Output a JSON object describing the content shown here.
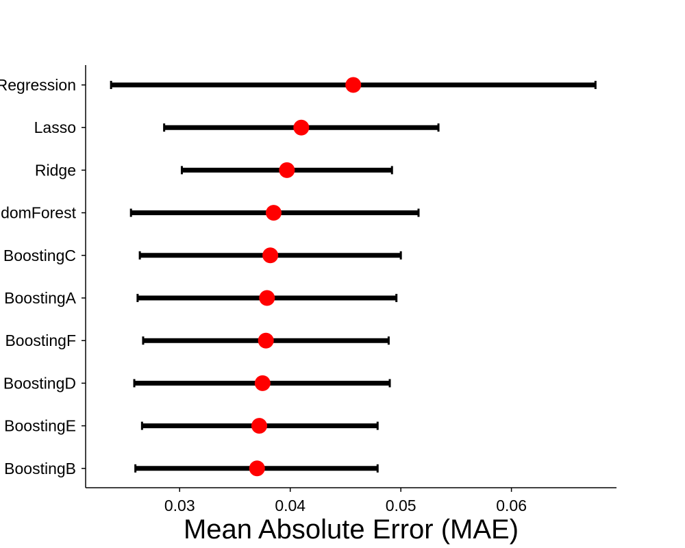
{
  "chart_data": {
    "type": "scatter",
    "orientation": "horizontal",
    "title": "",
    "xlabel": "Mean Absolute Error (MAE)",
    "ylabel": "",
    "xlim": [
      0.0215,
      0.0695
    ],
    "xticks": [
      0.03,
      0.04,
      0.05,
      0.06
    ],
    "xtick_labels": [
      "0.03",
      "0.04",
      "0.05",
      "0.06"
    ],
    "grid": false,
    "legend": "none",
    "point_color": "#ff0000",
    "errorbar_color": "#000000",
    "categories": [
      "Regression",
      "Lasso",
      "Ridge",
      "domForest",
      "BoostingC",
      "BoostingA",
      "BoostingF",
      "BoostingD",
      "BoostingE",
      "BoostingB"
    ],
    "values": [
      0.0457,
      0.041,
      0.0397,
      0.0385,
      0.0382,
      0.0379,
      0.0378,
      0.0375,
      0.0372,
      0.037
    ],
    "lower": [
      0.0238,
      0.0286,
      0.0302,
      0.0256,
      0.0264,
      0.0262,
      0.0267,
      0.0259,
      0.0266,
      0.026
    ],
    "upper": [
      0.0676,
      0.0534,
      0.0492,
      0.0516,
      0.05,
      0.0496,
      0.0489,
      0.049,
      0.0479,
      0.0479
    ]
  }
}
